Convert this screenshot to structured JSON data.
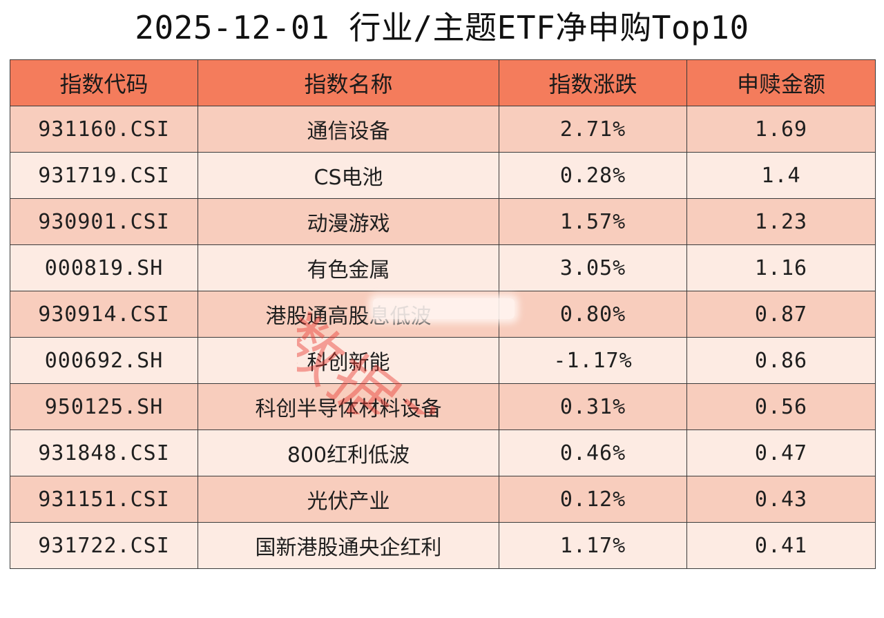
{
  "title": "2025-12-01 行业/主题ETF净申购Top10",
  "watermark": "数据方向",
  "colors": {
    "header_bg": "#f47c5c",
    "row_odd_bg": "#f8cdbd",
    "row_even_bg": "#fdebe3",
    "border": "#3a3a3a"
  },
  "chart_data": {
    "type": "table",
    "title": "2025-12-01 行业/主题ETF净申购Top10",
    "columns": [
      "指数代码",
      "指数名称",
      "指数涨跌",
      "申赎金额"
    ],
    "rows": [
      [
        "931160.CSI",
        "通信设备",
        "2.71%",
        "1.69"
      ],
      [
        "931719.CSI",
        "CS电池",
        "0.28%",
        "1.4"
      ],
      [
        "930901.CSI",
        "动漫游戏",
        "1.57%",
        "1.23"
      ],
      [
        "000819.SH",
        "有色金属",
        "3.05%",
        "1.16"
      ],
      [
        "930914.CSI",
        "港股通高股息低波",
        "0.80%",
        "0.87"
      ],
      [
        "000692.SH",
        "科创新能",
        "-1.17%",
        "0.86"
      ],
      [
        "950125.SH",
        "科创半导体材料设备",
        "0.31%",
        "0.56"
      ],
      [
        "931848.CSI",
        "800红利低波",
        "0.46%",
        "0.47"
      ],
      [
        "931151.CSI",
        "光伏产业",
        "0.12%",
        "0.43"
      ],
      [
        "931722.CSI",
        "国新港股通央企红利",
        "1.17%",
        "0.41"
      ]
    ]
  }
}
